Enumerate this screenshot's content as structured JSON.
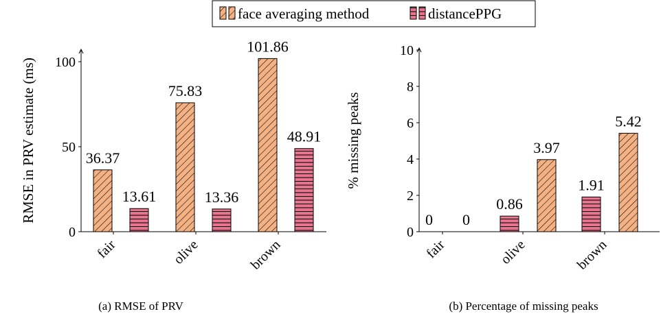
{
  "legend": {
    "items": [
      {
        "label": "face averaging method",
        "pattern": "diagonal",
        "color": "#f4b183"
      },
      {
        "label": "distancePPG",
        "pattern": "horizontal",
        "color": "#e8748f"
      }
    ]
  },
  "captions": {
    "a": "(a) RMSE of PRV",
    "b": "(b) Percentage of missing peaks"
  },
  "chart_data": [
    {
      "type": "bar",
      "categories": [
        "fair",
        "olive",
        "brown"
      ],
      "series": [
        {
          "name": "face averaging method",
          "values": [
            36.37,
            75.83,
            101.86
          ],
          "labels": [
            "36.37",
            "75.83",
            "101.86"
          ],
          "pattern": "diagonal"
        },
        {
          "name": "distancePPG",
          "values": [
            13.61,
            13.36,
            48.91
          ],
          "labels": [
            "13.61",
            "13.36",
            "48.91"
          ],
          "pattern": "horizontal"
        }
      ],
      "ylabel": "RMSE in PRV estimate (ms)",
      "yticks": [
        0,
        50,
        100
      ],
      "ylim": [
        0,
        110
      ]
    },
    {
      "type": "bar",
      "categories": [
        "fair",
        "olive",
        "brown"
      ],
      "bars": [
        [
          {
            "value": 0,
            "label": "0",
            "pattern": "none"
          },
          {
            "value": 0,
            "label": "0",
            "pattern": "none"
          }
        ],
        [
          {
            "value": 0.86,
            "label": "0.86",
            "pattern": "horizontal"
          },
          {
            "value": 3.97,
            "label": "3.97",
            "pattern": "diagonal"
          }
        ],
        [
          {
            "value": 1.91,
            "label": "1.91",
            "pattern": "horizontal"
          },
          {
            "value": 5.42,
            "label": "5.42",
            "pattern": "diagonal"
          }
        ]
      ],
      "ylabel": "% missing peaks",
      "yticks": [
        0,
        2,
        4,
        6,
        8,
        10
      ],
      "ylim": [
        0,
        10
      ]
    }
  ]
}
